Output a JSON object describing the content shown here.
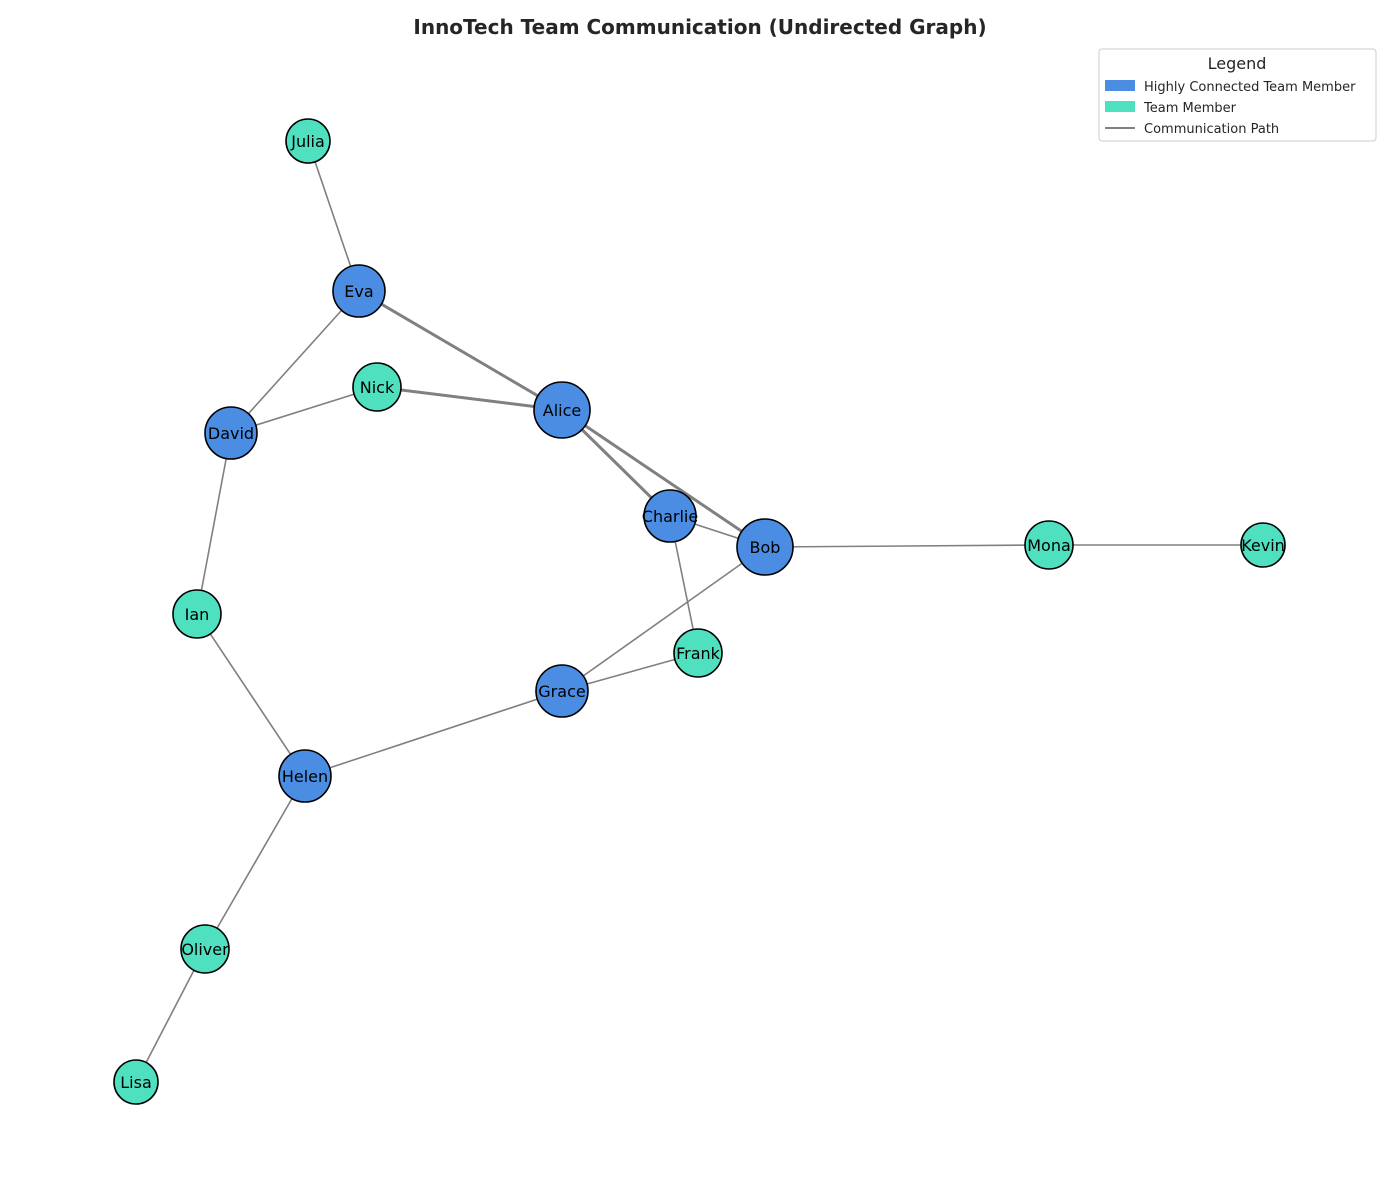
{
  "title": "InnoTech Team Communication (Undirected Graph)",
  "colors": {
    "highly_connected": "#4a8de3",
    "team_member": "#4fe0c0",
    "edge": "#808080",
    "node_border": "#000000"
  },
  "legend": {
    "title": "Legend",
    "items": [
      {
        "label": "Highly Connected Team Member",
        "kind": "highly_connected"
      },
      {
        "label": "Team Member",
        "kind": "team_member"
      },
      {
        "label": "Communication Path",
        "kind": "edge"
      }
    ]
  },
  "nodes": [
    {
      "id": "Alice",
      "label": "Alice",
      "kind": "highly_connected"
    },
    {
      "id": "Bob",
      "label": "Bob",
      "kind": "highly_connected"
    },
    {
      "id": "Charlie",
      "label": "Charlie",
      "kind": "highly_connected"
    },
    {
      "id": "David",
      "label": "David",
      "kind": "highly_connected"
    },
    {
      "id": "Eva",
      "label": "Eva",
      "kind": "highly_connected"
    },
    {
      "id": "Grace",
      "label": "Grace",
      "kind": "highly_connected"
    },
    {
      "id": "Helen",
      "label": "Helen",
      "kind": "highly_connected"
    },
    {
      "id": "Frank",
      "label": "Frank",
      "kind": "team_member"
    },
    {
      "id": "Ian",
      "label": "Ian",
      "kind": "team_member"
    },
    {
      "id": "Julia",
      "label": "Julia",
      "kind": "team_member"
    },
    {
      "id": "Kevin",
      "label": "Kevin",
      "kind": "team_member"
    },
    {
      "id": "Lisa",
      "label": "Lisa",
      "kind": "team_member"
    },
    {
      "id": "Mona",
      "label": "Mona",
      "kind": "team_member"
    },
    {
      "id": "Nick",
      "label": "Nick",
      "kind": "team_member"
    },
    {
      "id": "Oliver",
      "label": "Oliver",
      "kind": "team_member"
    }
  ],
  "edges": [
    {
      "source": "Alice",
      "target": "Bob",
      "weight": 2
    },
    {
      "source": "Alice",
      "target": "Charlie",
      "weight": 2
    },
    {
      "source": "Alice",
      "target": "Eva",
      "weight": 2
    },
    {
      "source": "Alice",
      "target": "Nick",
      "weight": 2
    },
    {
      "source": "Bob",
      "target": "Charlie",
      "weight": 1
    },
    {
      "source": "Bob",
      "target": "Mona",
      "weight": 1
    },
    {
      "source": "Bob",
      "target": "Grace",
      "weight": 1
    },
    {
      "source": "Charlie",
      "target": "Frank",
      "weight": 1
    },
    {
      "source": "David",
      "target": "Eva",
      "weight": 1
    },
    {
      "source": "David",
      "target": "Nick",
      "weight": 1
    },
    {
      "source": "David",
      "target": "Ian",
      "weight": 1
    },
    {
      "source": "Eva",
      "target": "Julia",
      "weight": 1
    },
    {
      "source": "Frank",
      "target": "Grace",
      "weight": 1
    },
    {
      "source": "Grace",
      "target": "Helen",
      "weight": 1
    },
    {
      "source": "Helen",
      "target": "Ian",
      "weight": 1
    },
    {
      "source": "Helen",
      "target": "Oliver",
      "weight": 1
    },
    {
      "source": "Oliver",
      "target": "Lisa",
      "weight": 1
    },
    {
      "source": "Mona",
      "target": "Kevin",
      "weight": 1
    }
  ]
}
